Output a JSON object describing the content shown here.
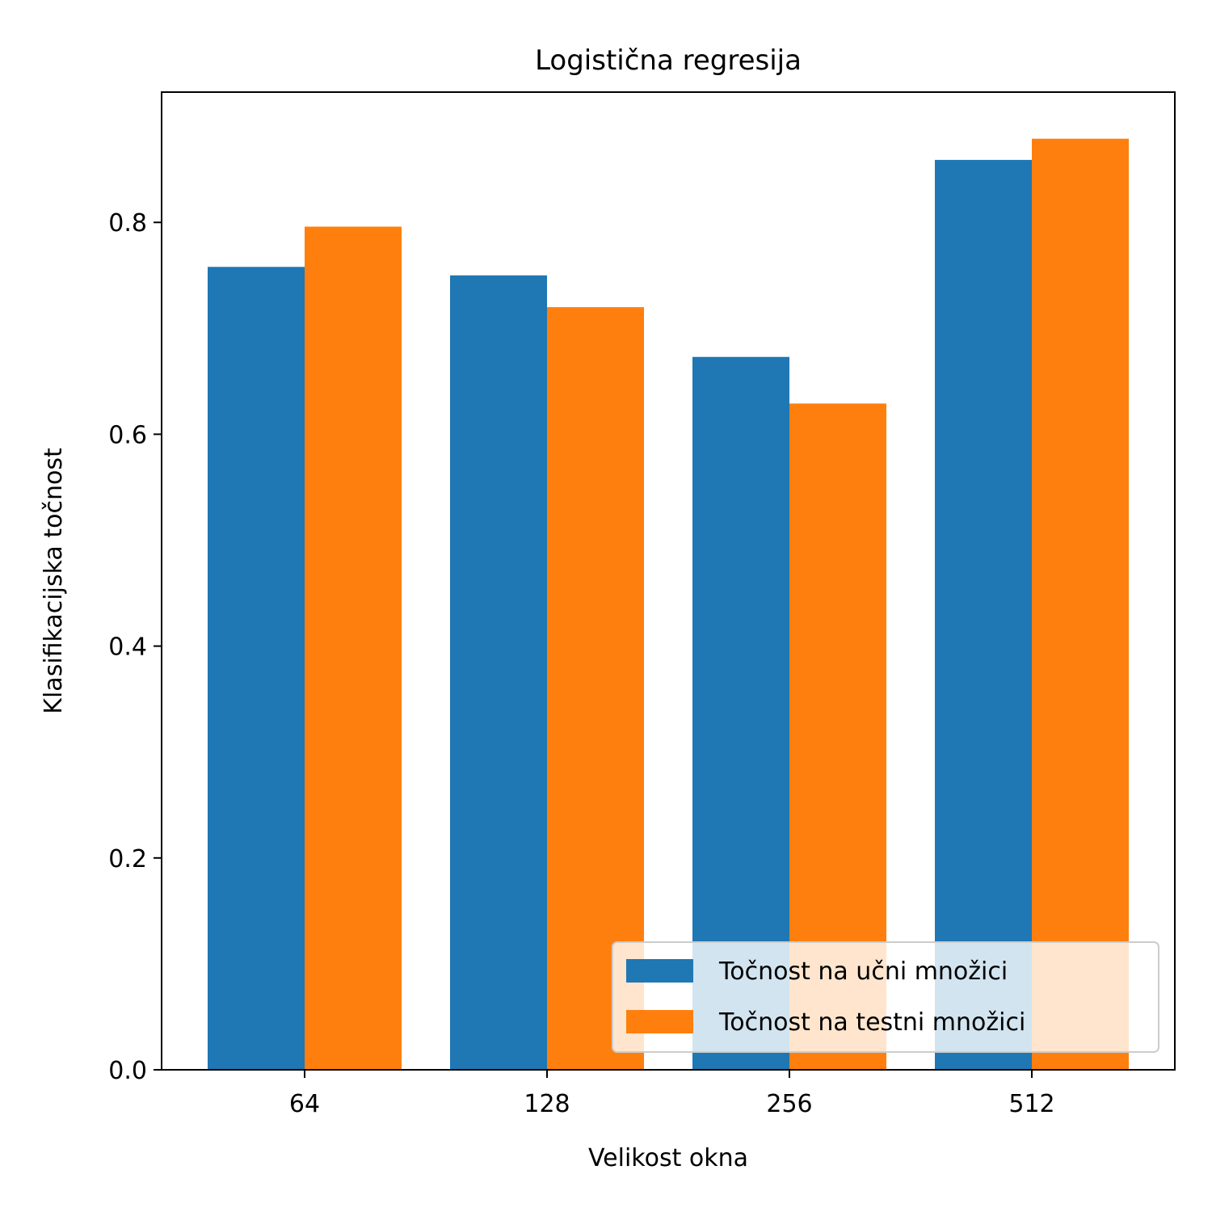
{
  "chart_data": {
    "type": "bar",
    "title": "Logistična regresija",
    "xlabel": "Velikost okna",
    "ylabel": "Klasifikacijska točnost",
    "categories": [
      "64",
      "128",
      "256",
      "512"
    ],
    "series": [
      {
        "name": "Točnost na učni množici",
        "color": "#1f77b4",
        "values": [
          0.758,
          0.75,
          0.673,
          0.859
        ]
      },
      {
        "name": "Točnost na testni množici",
        "color": "#ff7f0e",
        "values": [
          0.796,
          0.72,
          0.629,
          0.879
        ]
      }
    ],
    "ylim": [
      0,
      0.923
    ],
    "yticks": [
      "0.0",
      "0.2",
      "0.4",
      "0.6",
      "0.8"
    ],
    "grid": false,
    "legend_position": "lower-right"
  }
}
